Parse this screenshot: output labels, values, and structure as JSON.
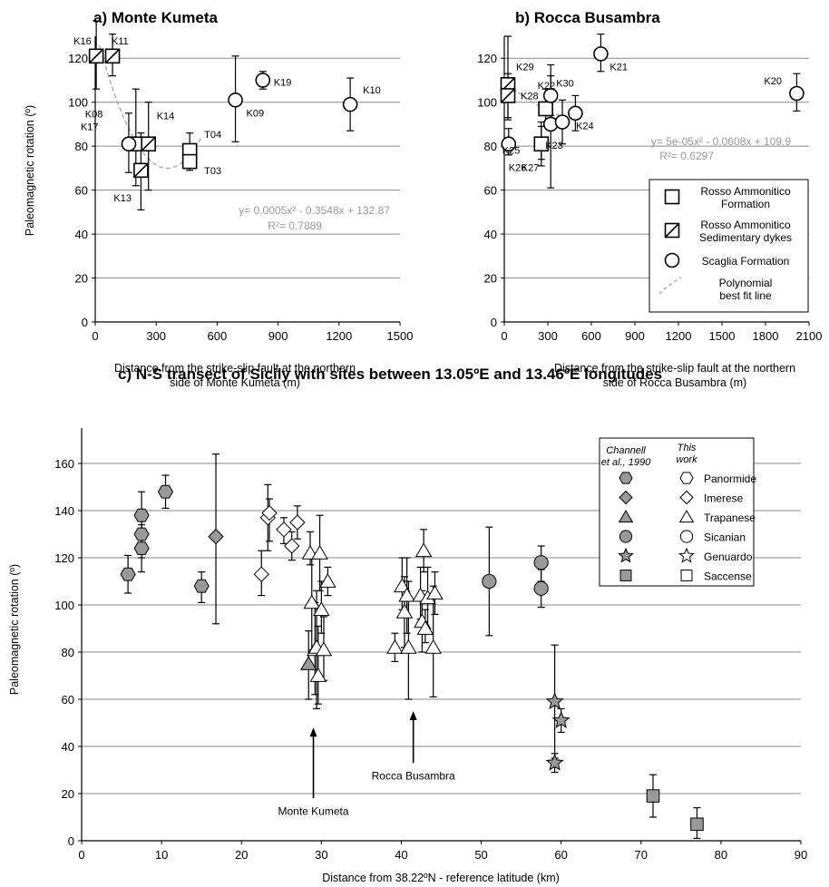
{
  "chart_data": [
    {
      "type": "scatter",
      "title": "a) Monte Kumeta",
      "xlabel": "Distance from the strike-slip fault at the northern side of Monte Kumeta (m)",
      "xlabel_lines": [
        "Distance from the strike-slip fault at the northern",
        "side of Monte Kumeta (m)"
      ],
      "ylabel": "Paleomagnetic rotation (º)",
      "xlim": [
        0,
        1500
      ],
      "ylim": [
        0,
        130
      ],
      "xticks": [
        0,
        300,
        600,
        900,
        1200,
        1500
      ],
      "yticks": [
        0,
        20,
        40,
        60,
        80,
        100,
        120
      ],
      "grid": "horizontal",
      "fit": {
        "equation": "y= 0.0005x² - 0.3548x + 132.87",
        "r2": "R²= 0.7889",
        "a": 0.0005,
        "b": -0.3548,
        "c": 132.87,
        "x_range": [
          20,
          520
        ]
      },
      "points": [
        {
          "label": "K16",
          "x": 5,
          "y": 121,
          "err": [
            106,
            137
          ],
          "marker": "dyke"
        },
        {
          "label": "K11",
          "x": 85,
          "y": 121,
          "err": [
            112,
            131
          ],
          "marker": "dyke"
        },
        {
          "label": "K08",
          "x": 200,
          "y": 81,
          "err": [
            62,
            106
          ],
          "marker": "formation"
        },
        {
          "label": "K17",
          "x": 165,
          "y": 81,
          "err": [
            68,
            95
          ],
          "marker": "scaglia"
        },
        {
          "label": "K14",
          "x": 262,
          "y": 81,
          "err": [
            60,
            100
          ],
          "marker": "dyke"
        },
        {
          "label": "K13",
          "x": 225,
          "y": 69,
          "err": [
            51,
            86
          ],
          "marker": "dyke"
        },
        {
          "label": "T04",
          "x": 465,
          "y": 78,
          "err": [
            71,
            86
          ],
          "marker": "formation"
        },
        {
          "label": "T03",
          "x": 465,
          "y": 73,
          "err": [
            69,
            78
          ],
          "marker": "formation"
        },
        {
          "label": "K09",
          "x": 690,
          "y": 101,
          "err": [
            82,
            121
          ],
          "marker": "scaglia"
        },
        {
          "label": "K19",
          "x": 825,
          "y": 110,
          "err": [
            106,
            114
          ],
          "marker": "scaglia"
        },
        {
          "label": "K10",
          "x": 1255,
          "y": 99,
          "err": [
            87,
            111
          ],
          "marker": "scaglia"
        }
      ]
    },
    {
      "type": "scatter",
      "title": "b) Rocca Busambra",
      "xlabel": "Distance from the strike-slip fault at the northern side of Rocca Busambra (m)",
      "xlabel_lines": [
        "Distance from the strike-slip fault at the northern",
        "side of Rocca Busambra (m)"
      ],
      "xlim": [
        0,
        2100
      ],
      "ylim": [
        0,
        130
      ],
      "xticks": [
        0,
        300,
        600,
        900,
        1200,
        1500,
        1800,
        2100
      ],
      "yticks": [
        0,
        20,
        40,
        60,
        80,
        100,
        120
      ],
      "grid": "horizontal",
      "fit": {
        "equation": "y= 5e-05x² - 0.0608x + 109.9",
        "r2": "R²= 0.6297",
        "a": 5e-05,
        "b": -0.0608,
        "c": 109.9,
        "x_range": [
          20,
          500
        ]
      },
      "points": [
        {
          "label": "K29",
          "x": 25,
          "y": 108,
          "err": [
            92,
            130
          ],
          "marker": "dyke"
        },
        {
          "label": "K28",
          "x": 25,
          "y": 103,
          "err": [
            93,
            113
          ],
          "marker": "dyke"
        },
        {
          "label": "K26",
          "x": 30,
          "y": 81,
          "err": [
            76,
            88
          ],
          "marker": "scaglia"
        },
        {
          "label": "K22",
          "x": 285,
          "y": 97,
          "err": [
            89,
            106
          ],
          "marker": "formation"
        },
        {
          "label": "K25",
          "x": 255,
          "y": 81,
          "err": [
            74,
            89
          ],
          "marker": "formation"
        },
        {
          "label": "K27",
          "x": 255,
          "y": 81,
          "err": [
            71,
            91
          ],
          "marker": "formation"
        },
        {
          "label": "K30",
          "x": 320,
          "y": 103,
          "err": [
            94,
            117
          ],
          "marker": "scaglia"
        },
        {
          "label": "K23",
          "x": 320,
          "y": 90,
          "err": [
            61,
            112
          ],
          "marker": "scaglia"
        },
        {
          "label": "K24",
          "x": 400,
          "y": 91,
          "err": [
            81,
            101
          ],
          "marker": "scaglia"
        },
        {
          "label": "",
          "x": 490,
          "y": 95,
          "err": [
            87,
            103
          ],
          "marker": "scaglia"
        },
        {
          "label": "K21",
          "x": 665,
          "y": 122,
          "err": [
            114,
            131
          ],
          "marker": "scaglia"
        },
        {
          "label": "K20",
          "x": 2015,
          "y": 104,
          "err": [
            96,
            113
          ],
          "marker": "scaglia"
        }
      ],
      "legend": {
        "placement": "right",
        "entries": [
          {
            "marker": "formation",
            "label_lines": [
              "Rosso Ammonitico",
              "Formation"
            ]
          },
          {
            "marker": "dyke",
            "label_lines": [
              "Rosso Ammonitico",
              "Sedimentary dykes"
            ]
          },
          {
            "marker": "scaglia",
            "label_lines": [
              "Scaglia Formation"
            ]
          },
          {
            "marker": "fit",
            "label_lines": [
              "Polynomial",
              "best fit line"
            ]
          }
        ]
      }
    },
    {
      "type": "scatter",
      "title": "c) N-S transect of Sicily with sites between 13.05ºE and 13.46ºE longitudes",
      "xlabel": "Distance from 38.22ºN - reference latitude (km)",
      "ylabel": "Paleomagnetic rotation (º)",
      "xlim": [
        0,
        90
      ],
      "ylim": [
        0,
        175
      ],
      "xticks": [
        0,
        10,
        20,
        30,
        40,
        50,
        60,
        70,
        80,
        90
      ],
      "yticks": [
        0,
        20,
        40,
        60,
        80,
        100,
        120,
        140,
        160
      ],
      "grid": "horizontal",
      "annotations": [
        {
          "text": "Monte Kumeta",
          "x": 29,
          "tip_y": 48,
          "tail_y": 18,
          "label_y": 11
        },
        {
          "text": "Rocca Busambra",
          "x": 41.5,
          "tip_y": 55,
          "tail_y": 33,
          "label_y": 26
        }
      ],
      "legend": {
        "placement": "top-right",
        "header_channell": "Channell",
        "header_channell_suffix": "et al., 1990",
        "header_thiswork_lines": [
          "This",
          "work"
        ],
        "entries": [
          {
            "shape": "hexagon",
            "label": "Panormide"
          },
          {
            "shape": "diamond",
            "label": "Imerese"
          },
          {
            "shape": "triangle",
            "label": "Trapanese"
          },
          {
            "shape": "circle",
            "label": "Sicanian"
          },
          {
            "shape": "star",
            "label": "Genuardo"
          },
          {
            "shape": "square",
            "label": "Saccense"
          }
        ]
      },
      "series": [
        {
          "source": "Channell et al., 1990",
          "shape": "hexagon",
          "unit": "Panormide",
          "points": [
            {
              "x": 5.8,
              "y": 113,
              "err": [
                105,
                121
              ]
            },
            {
              "x": 7.5,
              "y": 138,
              "err": [
                128,
                148
              ]
            },
            {
              "x": 7.5,
              "y": 130,
              "err": [
                120,
                140
              ]
            },
            {
              "x": 7.5,
              "y": 124,
              "err": [
                114,
                134
              ]
            },
            {
              "x": 10.5,
              "y": 148,
              "err": [
                141,
                155
              ]
            },
            {
              "x": 15,
              "y": 108,
              "err": [
                101,
                114
              ]
            }
          ]
        },
        {
          "source": "Channell et al., 1990",
          "shape": "diamond",
          "unit": "Imerese",
          "points": [
            {
              "x": 16.8,
              "y": 129,
              "err": [
                92,
                164
              ]
            }
          ]
        },
        {
          "source": "Channell et al., 1990",
          "shape": "triangle",
          "unit": "Trapanese",
          "points": [
            {
              "x": 28.4,
              "y": 75,
              "err": [
                60,
                89
              ]
            }
          ]
        },
        {
          "source": "Channell et al., 1990",
          "shape": "circle",
          "unit": "Sicanian",
          "points": [
            {
              "x": 51,
              "y": 110,
              "err": [
                87,
                133
              ]
            },
            {
              "x": 57.5,
              "y": 118,
              "err": [
                110,
                125
              ]
            },
            {
              "x": 57.5,
              "y": 107,
              "err": [
                99,
                115
              ]
            }
          ]
        },
        {
          "source": "Channell et al., 1990",
          "shape": "star",
          "unit": "Genuardo",
          "points": [
            {
              "x": 59.2,
              "y": 59,
              "err": [
                35,
                83
              ]
            },
            {
              "x": 59.2,
              "y": 33,
              "err": [
                29,
                37
              ]
            },
            {
              "x": 60,
              "y": 51,
              "err": [
                46,
                56
              ]
            }
          ]
        },
        {
          "source": "Channell et al., 1990",
          "shape": "square",
          "unit": "Saccense",
          "points": [
            {
              "x": 71.5,
              "y": 19,
              "err": [
                10,
                28
              ]
            },
            {
              "x": 77,
              "y": 7,
              "err": [
                1,
                14
              ]
            }
          ]
        },
        {
          "source": "This work",
          "shape": "diamond",
          "unit": "Imerese",
          "points": [
            {
              "x": 22.5,
              "y": 113,
              "err": [
                104,
                123
              ]
            },
            {
              "x": 23.3,
              "y": 137,
              "err": [
                123,
                151
              ]
            },
            {
              "x": 23.5,
              "y": 139,
              "err": [
                127,
                145
              ]
            },
            {
              "x": 25.3,
              "y": 132,
              "err": [
                126,
                137
              ]
            },
            {
              "x": 26.3,
              "y": 125,
              "err": [
                119,
                131
              ]
            },
            {
              "x": 27,
              "y": 135,
              "err": [
                128,
                142
              ]
            }
          ]
        },
        {
          "source": "This work",
          "shape": "triangle",
          "unit": "Trapanese",
          "points": [
            {
              "x": 28.6,
              "y": 122,
              "err": [
                117,
                131
              ]
            },
            {
              "x": 28.8,
              "y": 101,
              "err": [
                81,
                122
              ]
            },
            {
              "x": 29.2,
              "y": 81,
              "err": [
                62,
                101
              ]
            },
            {
              "x": 29.4,
              "y": 82,
              "err": [
                56,
                106
              ]
            },
            {
              "x": 29.6,
              "y": 70,
              "err": [
                58,
                91
              ]
            },
            {
              "x": 29.8,
              "y": 122,
              "err": [
                106,
                138
              ]
            },
            {
              "x": 30.0,
              "y": 98,
              "err": [
                88,
                110
              ]
            },
            {
              "x": 30.3,
              "y": 81,
              "err": [
                68,
                95
              ]
            },
            {
              "x": 30.8,
              "y": 110,
              "err": [
                104,
                116
              ]
            },
            {
              "x": 39.2,
              "y": 82,
              "err": [
                76,
                88
              ]
            },
            {
              "x": 40.1,
              "y": 108,
              "err": [
                98,
                120
              ]
            },
            {
              "x": 40.4,
              "y": 97,
              "err": [
                82,
                112
              ]
            },
            {
              "x": 40.7,
              "y": 104,
              "err": [
                88,
                120
              ]
            },
            {
              "x": 40.9,
              "y": 82,
              "err": [
                60,
                110
              ]
            },
            {
              "x": 42.4,
              "y": 104,
              "err": [
                94,
                116
              ]
            },
            {
              "x": 42.6,
              "y": 93,
              "err": [
                80,
                106
              ]
            },
            {
              "x": 42.8,
              "y": 123,
              "err": [
                114,
                132
              ]
            },
            {
              "x": 43.0,
              "y": 90,
              "err": [
                84,
                98
              ]
            },
            {
              "x": 43.3,
              "y": 103,
              "err": [
                90,
                116
              ]
            },
            {
              "x": 44.2,
              "y": 105,
              "err": [
                96,
                114
              ]
            },
            {
              "x": 44.0,
              "y": 82,
              "err": [
                61,
                108
              ]
            }
          ]
        }
      ]
    }
  ]
}
